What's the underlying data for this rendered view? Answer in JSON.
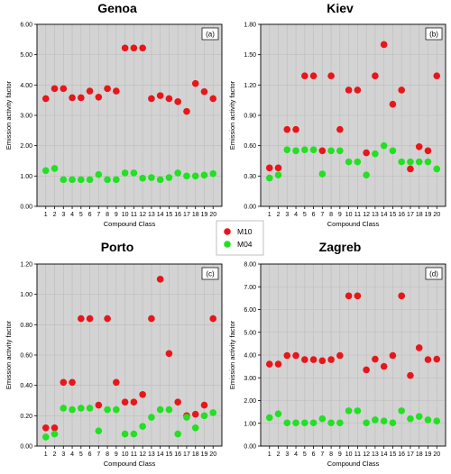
{
  "colors": {
    "M10": "#e8161a",
    "M04": "#22e022",
    "plot_bg": "#d3d3d3",
    "grid": "#bdbdbd"
  },
  "legend": [
    {
      "name": "M10",
      "color": "#e8161a"
    },
    {
      "name": "M04",
      "color": "#22e022"
    }
  ],
  "chart_data": [
    {
      "type": "scatter",
      "title": "Genoa",
      "panel_label": "(a)",
      "xlabel": "Compound Class",
      "ylabel": "Emission activity factor",
      "x": [
        1,
        2,
        3,
        4,
        5,
        6,
        7,
        8,
        9,
        10,
        11,
        12,
        13,
        14,
        15,
        16,
        17,
        18,
        19,
        20
      ],
      "ylim": [
        0,
        6
      ],
      "yticks": [
        "0.00",
        "1.00",
        "2.00",
        "3.00",
        "4.00",
        "5.00",
        "6.00"
      ],
      "grid": true,
      "series": [
        {
          "name": "M10",
          "values": [
            3.55,
            3.88,
            3.88,
            3.58,
            3.58,
            3.8,
            3.6,
            3.88,
            3.8,
            5.22,
            5.22,
            5.22,
            3.55,
            3.65,
            3.55,
            3.45,
            3.13,
            4.05,
            3.78,
            3.55
          ]
        },
        {
          "name": "M04",
          "values": [
            1.18,
            1.25,
            0.88,
            0.88,
            0.88,
            0.88,
            1.05,
            0.88,
            0.88,
            1.1,
            1.1,
            0.93,
            0.95,
            0.88,
            0.95,
            1.1,
            1.0,
            1.0,
            1.03,
            1.08
          ]
        }
      ]
    },
    {
      "type": "scatter",
      "title": "Kiev",
      "panel_label": "(b)",
      "xlabel": "Compound Class",
      "ylabel": "Emission activity factor",
      "x": [
        1,
        2,
        3,
        4,
        5,
        6,
        7,
        8,
        9,
        10,
        11,
        12,
        13,
        14,
        15,
        16,
        17,
        18,
        19,
        20
      ],
      "ylim": [
        0,
        1.8
      ],
      "yticks": [
        "0.00",
        "0.30",
        "0.60",
        "0.90",
        "1.20",
        "1.50",
        "1.80"
      ],
      "grid": true,
      "series": [
        {
          "name": "M10",
          "values": [
            0.38,
            0.38,
            0.76,
            0.76,
            1.29,
            1.29,
            0.55,
            1.29,
            0.76,
            1.15,
            1.15,
            0.53,
            1.29,
            1.6,
            1.01,
            1.15,
            0.37,
            0.59,
            0.55,
            1.29
          ]
        },
        {
          "name": "M04",
          "values": [
            0.28,
            0.31,
            0.56,
            0.55,
            0.56,
            0.56,
            0.32,
            0.55,
            0.55,
            0.44,
            0.44,
            0.31,
            0.52,
            0.6,
            0.55,
            0.44,
            0.44,
            0.44,
            0.44,
            0.37
          ]
        }
      ]
    },
    {
      "type": "scatter",
      "title": "Porto",
      "panel_label": "(c)",
      "xlabel": "Compound Class",
      "ylabel": "Emission activity factor",
      "x": [
        1,
        2,
        3,
        4,
        5,
        6,
        7,
        8,
        9,
        10,
        11,
        12,
        13,
        14,
        15,
        16,
        17,
        18,
        19,
        20
      ],
      "ylim": [
        0,
        1.2
      ],
      "yticks": [
        "0.00",
        "0.20",
        "0.40",
        "0.60",
        "0.80",
        "1.00",
        "1.20"
      ],
      "grid": true,
      "series": [
        {
          "name": "M10",
          "values": [
            0.12,
            0.12,
            0.42,
            0.42,
            0.84,
            0.84,
            0.27,
            0.84,
            0.42,
            0.29,
            0.29,
            0.34,
            0.84,
            1.1,
            0.61,
            0.29,
            0.2,
            0.21,
            0.27,
            0.84
          ]
        },
        {
          "name": "M04",
          "values": [
            0.06,
            0.08,
            0.25,
            0.24,
            0.25,
            0.25,
            0.1,
            0.24,
            0.24,
            0.08,
            0.08,
            0.13,
            0.19,
            0.24,
            0.24,
            0.08,
            0.19,
            0.12,
            0.2,
            0.22
          ]
        }
      ]
    },
    {
      "type": "scatter",
      "title": "Zagreb",
      "panel_label": "(d)",
      "xlabel": "Compound Class",
      "ylabel": "Emission activity factor",
      "x": [
        1,
        2,
        3,
        4,
        5,
        6,
        7,
        8,
        9,
        10,
        11,
        12,
        13,
        14,
        15,
        16,
        17,
        18,
        19,
        20
      ],
      "ylim": [
        0,
        8
      ],
      "yticks": [
        "0.00",
        "1.00",
        "2.00",
        "3.00",
        "4.00",
        "5.00",
        "6.00",
        "7.00",
        "8.00"
      ],
      "grid": true,
      "series": [
        {
          "name": "M10",
          "values": [
            3.6,
            3.6,
            3.98,
            3.98,
            3.8,
            3.8,
            3.75,
            3.8,
            3.98,
            6.6,
            6.6,
            3.35,
            3.82,
            3.5,
            3.98,
            6.6,
            3.1,
            4.32,
            3.8,
            3.82
          ]
        },
        {
          "name": "M04",
          "values": [
            1.25,
            1.42,
            1.02,
            1.02,
            1.02,
            1.02,
            1.2,
            1.02,
            1.02,
            1.55,
            1.55,
            1.02,
            1.15,
            1.1,
            1.02,
            1.55,
            1.2,
            1.3,
            1.15,
            1.1
          ]
        }
      ]
    }
  ]
}
